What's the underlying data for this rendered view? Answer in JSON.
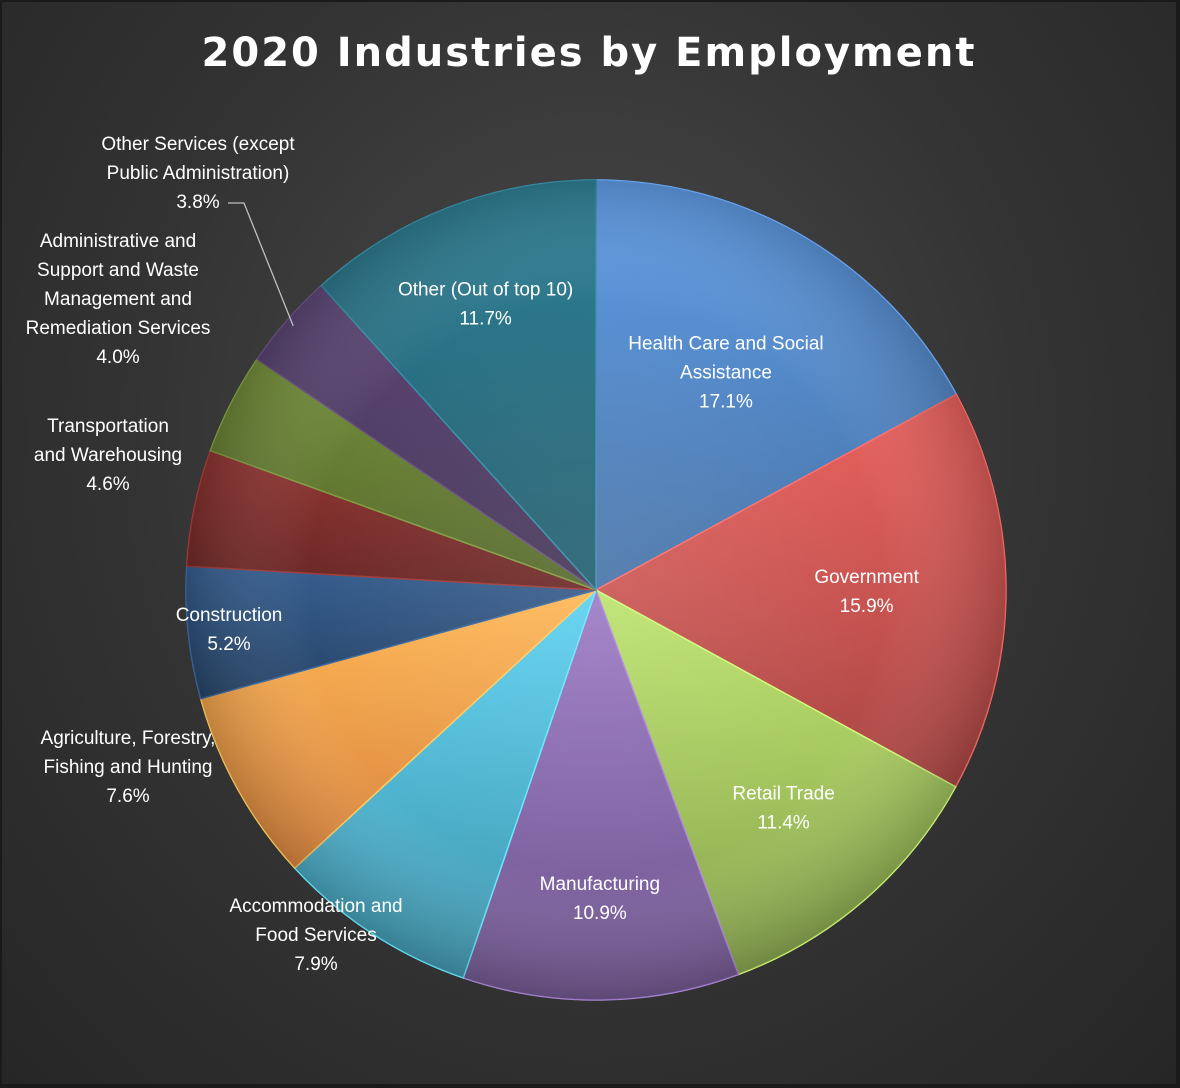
{
  "chart_data": {
    "type": "pie",
    "title": "2020 Industries by Employment",
    "slices": [
      {
        "name": "Health Care and Social Assistance",
        "lines": [
          "Health Care and Social",
          "Assistance"
        ],
        "value": 17.1,
        "label": "17.1%",
        "color": "#4f81bd",
        "label_inside": true
      },
      {
        "name": "Government",
        "lines": [
          "Government"
        ],
        "value": 15.9,
        "label": "15.9%",
        "color": "#c0504d",
        "label_inside": true
      },
      {
        "name": "Retail Trade",
        "lines": [
          "Retail Trade"
        ],
        "value": 11.4,
        "label": "11.4%",
        "color": "#9bbb59",
        "label_inside": true
      },
      {
        "name": "Manufacturing",
        "lines": [
          "Manufacturing"
        ],
        "value": 10.9,
        "label": "10.9%",
        "color": "#8064a2",
        "label_inside": true
      },
      {
        "name": "Accommodation and Food Services",
        "lines": [
          "Accommodation and",
          "Food Services"
        ],
        "value": 7.9,
        "label": "7.9%",
        "color": "#4bacc6",
        "label_inside": false
      },
      {
        "name": "Agriculture, Forestry, Fishing and Hunting",
        "lines": [
          "Agriculture, Forestry,",
          "Fishing and Hunting"
        ],
        "value": 7.6,
        "label": "7.6%",
        "color": "#f79646",
        "label_inside": false
      },
      {
        "name": "Construction",
        "lines": [
          "Construction"
        ],
        "value": 5.2,
        "label": "5.2%",
        "color": "#2c4d75",
        "label_inside": true
      },
      {
        "name": "Transportation and Warehousing",
        "lines": [
          "Transportation",
          "and Warehousing"
        ],
        "value": 4.6,
        "label": "4.6%",
        "color": "#772c2a",
        "label_inside": false
      },
      {
        "name": "Administrative and Support and Waste Management and Remediation Services",
        "lines": [
          "Administrative and",
          "Support and Waste",
          "Management and",
          "Remediation Services"
        ],
        "value": 4.0,
        "label": "4.0%",
        "color": "#5f7530",
        "label_inside": false
      },
      {
        "name": "Other Services (except Public Administration)",
        "lines": [
          "Other Services (except",
          "Public Administration)"
        ],
        "value": 3.8,
        "label": "3.8%",
        "color": "#4d3b62",
        "label_inside": false,
        "leader_line": true
      },
      {
        "name": "Other (Out of top 10)",
        "lines": [
          "Other (Out of top 10)"
        ],
        "value": 11.7,
        "label": "11.7%",
        "color": "#276a7c",
        "label_inside": true
      }
    ],
    "legend": "none",
    "label_color": "#ffffff"
  }
}
